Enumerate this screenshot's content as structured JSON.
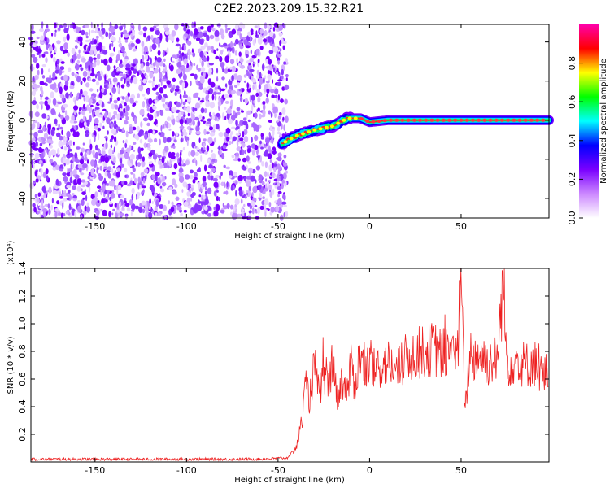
{
  "figure": {
    "title": "C2E2.2023.209.15.32.R21"
  },
  "chart_data": [
    {
      "type": "heatmap",
      "title": "C2E2.2023.209.15.32.R21",
      "xlabel": "Height of straight line (km)",
      "ylabel": "Frequency (Hz)",
      "xlim": [
        -185,
        98
      ],
      "ylim": [
        -50,
        49
      ],
      "xticks": [
        -150,
        -100,
        -50,
        0,
        50
      ],
      "yticks": [
        -40,
        -20,
        0,
        20,
        40
      ],
      "colorbar": {
        "label": "Normalized spectral amplitude",
        "range": [
          0,
          1
        ],
        "ticks": [
          0.0,
          0.2,
          0.4,
          0.6,
          0.8
        ],
        "colormap": [
          "#ffffff",
          "#cc88ff",
          "#7a00ff",
          "#0000ff",
          "#00ffff",
          "#00ff00",
          "#ffff00",
          "#ff0000",
          "#ff00aa"
        ]
      },
      "ridge": {
        "x": [
          -48,
          -40,
          -30,
          -20,
          -12,
          -5,
          0,
          10,
          20,
          45,
          50,
          60,
          70,
          80,
          98
        ],
        "freq": [
          -12,
          -8,
          -5,
          -3,
          1,
          1,
          -1,
          0,
          0,
          0,
          0,
          0,
          0,
          0,
          0
        ]
      },
      "noise_region_x": [
        -185,
        -45
      ]
    },
    {
      "type": "line",
      "xlabel": "Height of straight line (km)",
      "ylabel": "SNR (10 * v/v)",
      "yscale_label": "(x10⁴)",
      "xlim": [
        -185,
        98
      ],
      "ylim": [
        0,
        1.4
      ],
      "xticks": [
        -150,
        -100,
        -50,
        0,
        50
      ],
      "yticks": [
        0.2,
        0.4,
        0.6,
        0.8,
        1.0,
        1.2,
        1.4
      ],
      "color": "#ee2222",
      "series": [
        {
          "x": [
            -185,
            -150,
            -100,
            -60,
            -45,
            -40,
            -37,
            -35,
            -33,
            -30,
            -28,
            -25,
            -22,
            -20,
            -18,
            -15,
            -12,
            -10,
            -8,
            -5,
            -3,
            0,
            3,
            6,
            10,
            15,
            20,
            25,
            30,
            35,
            40,
            45,
            48,
            50,
            52,
            55,
            58,
            60,
            65,
            70,
            73,
            75,
            80,
            85,
            90,
            95,
            98
          ],
          "values": [
            0.02,
            0.02,
            0.02,
            0.02,
            0.03,
            0.1,
            0.3,
            0.55,
            0.45,
            0.7,
            0.5,
            0.6,
            0.55,
            0.8,
            0.45,
            0.6,
            0.5,
            0.7,
            0.55,
            0.8,
            0.65,
            0.7,
            0.65,
            0.7,
            0.72,
            0.65,
            0.75,
            0.78,
            0.8,
            0.82,
            0.78,
            0.85,
            0.75,
            1.38,
            0.35,
            0.8,
            0.75,
            0.78,
            0.72,
            0.75,
            1.32,
            0.7,
            0.75,
            0.7,
            0.72,
            0.62,
            0.65
          ]
        }
      ]
    }
  ]
}
